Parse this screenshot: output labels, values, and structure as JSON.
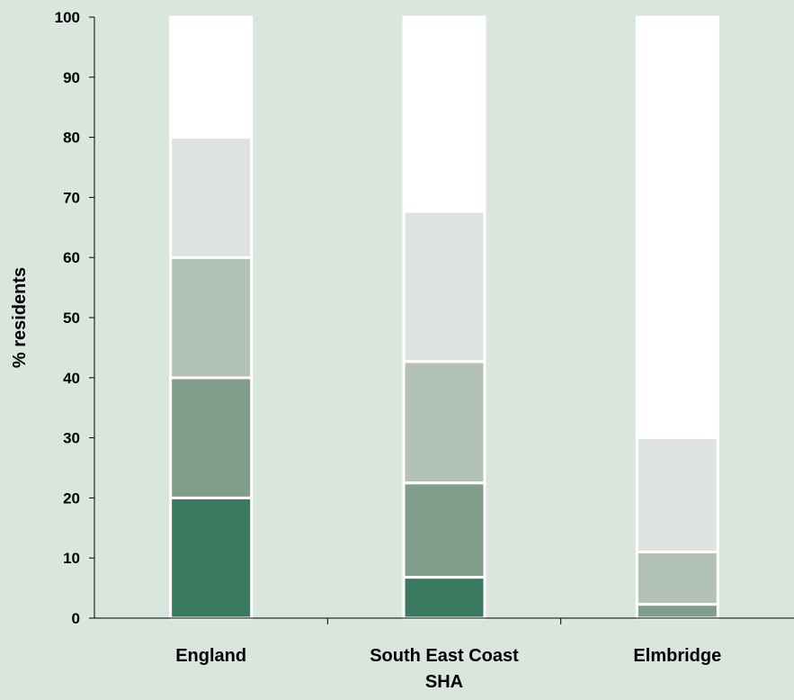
{
  "colors": {
    "background": "#d8e6dd",
    "segment_borders": "#ffffff",
    "band_colors": [
      "#3a7a60",
      "#819e8a",
      "#b3c2b6",
      "#dee3df",
      "#ffffff"
    ]
  },
  "chart_data": {
    "type": "bar",
    "stacked": true,
    "ylabel": "% residents",
    "xlabel": "",
    "ylim": [
      0,
      100
    ],
    "y_ticks": [
      0,
      10,
      20,
      30,
      40,
      50,
      60,
      70,
      80,
      90,
      100
    ],
    "categories": [
      [
        "England"
      ],
      [
        "South East Coast",
        "SHA"
      ],
      [
        "Elmbridge"
      ]
    ],
    "series": [
      {
        "values": [
          20,
          6.8,
          0
        ]
      },
      {
        "values": [
          20,
          15.7,
          2.3
        ]
      },
      {
        "values": [
          20,
          20.2,
          8.7
        ]
      },
      {
        "values": [
          20,
          25.0,
          19.0
        ]
      },
      {
        "values": [
          20,
          32.3,
          70.0
        ]
      }
    ],
    "grid": false,
    "legend": "none"
  }
}
